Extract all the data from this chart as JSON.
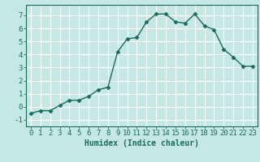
{
  "x": [
    0,
    1,
    2,
    3,
    4,
    5,
    6,
    7,
    8,
    9,
    10,
    11,
    12,
    13,
    14,
    15,
    16,
    17,
    18,
    19,
    20,
    21,
    22,
    23
  ],
  "y": [
    -0.5,
    -0.3,
    -0.3,
    0.1,
    0.5,
    0.5,
    0.8,
    1.3,
    1.5,
    4.2,
    5.2,
    5.3,
    6.5,
    7.1,
    7.1,
    6.5,
    6.4,
    7.1,
    6.2,
    5.9,
    4.4,
    3.8,
    3.1,
    3.1
  ],
  "x_ticks": [
    0,
    1,
    2,
    3,
    4,
    5,
    6,
    7,
    8,
    9,
    10,
    11,
    12,
    13,
    14,
    15,
    16,
    17,
    18,
    19,
    20,
    21,
    22,
    23
  ],
  "y_ticks": [
    -1,
    0,
    1,
    2,
    3,
    4,
    5,
    6,
    7
  ],
  "ylim": [
    -1.5,
    7.8
  ],
  "xlim": [
    -0.5,
    23.5
  ],
  "line_color": "#1a6b5a",
  "bg_color": "#c5e8e5",
  "grid_color": "#ffffff",
  "xlabel": "Humidex (Indice chaleur)",
  "marker": "D",
  "marker_size": 2.5,
  "line_width": 1.0,
  "xlabel_fontsize": 7,
  "tick_fontsize": 6.5
}
